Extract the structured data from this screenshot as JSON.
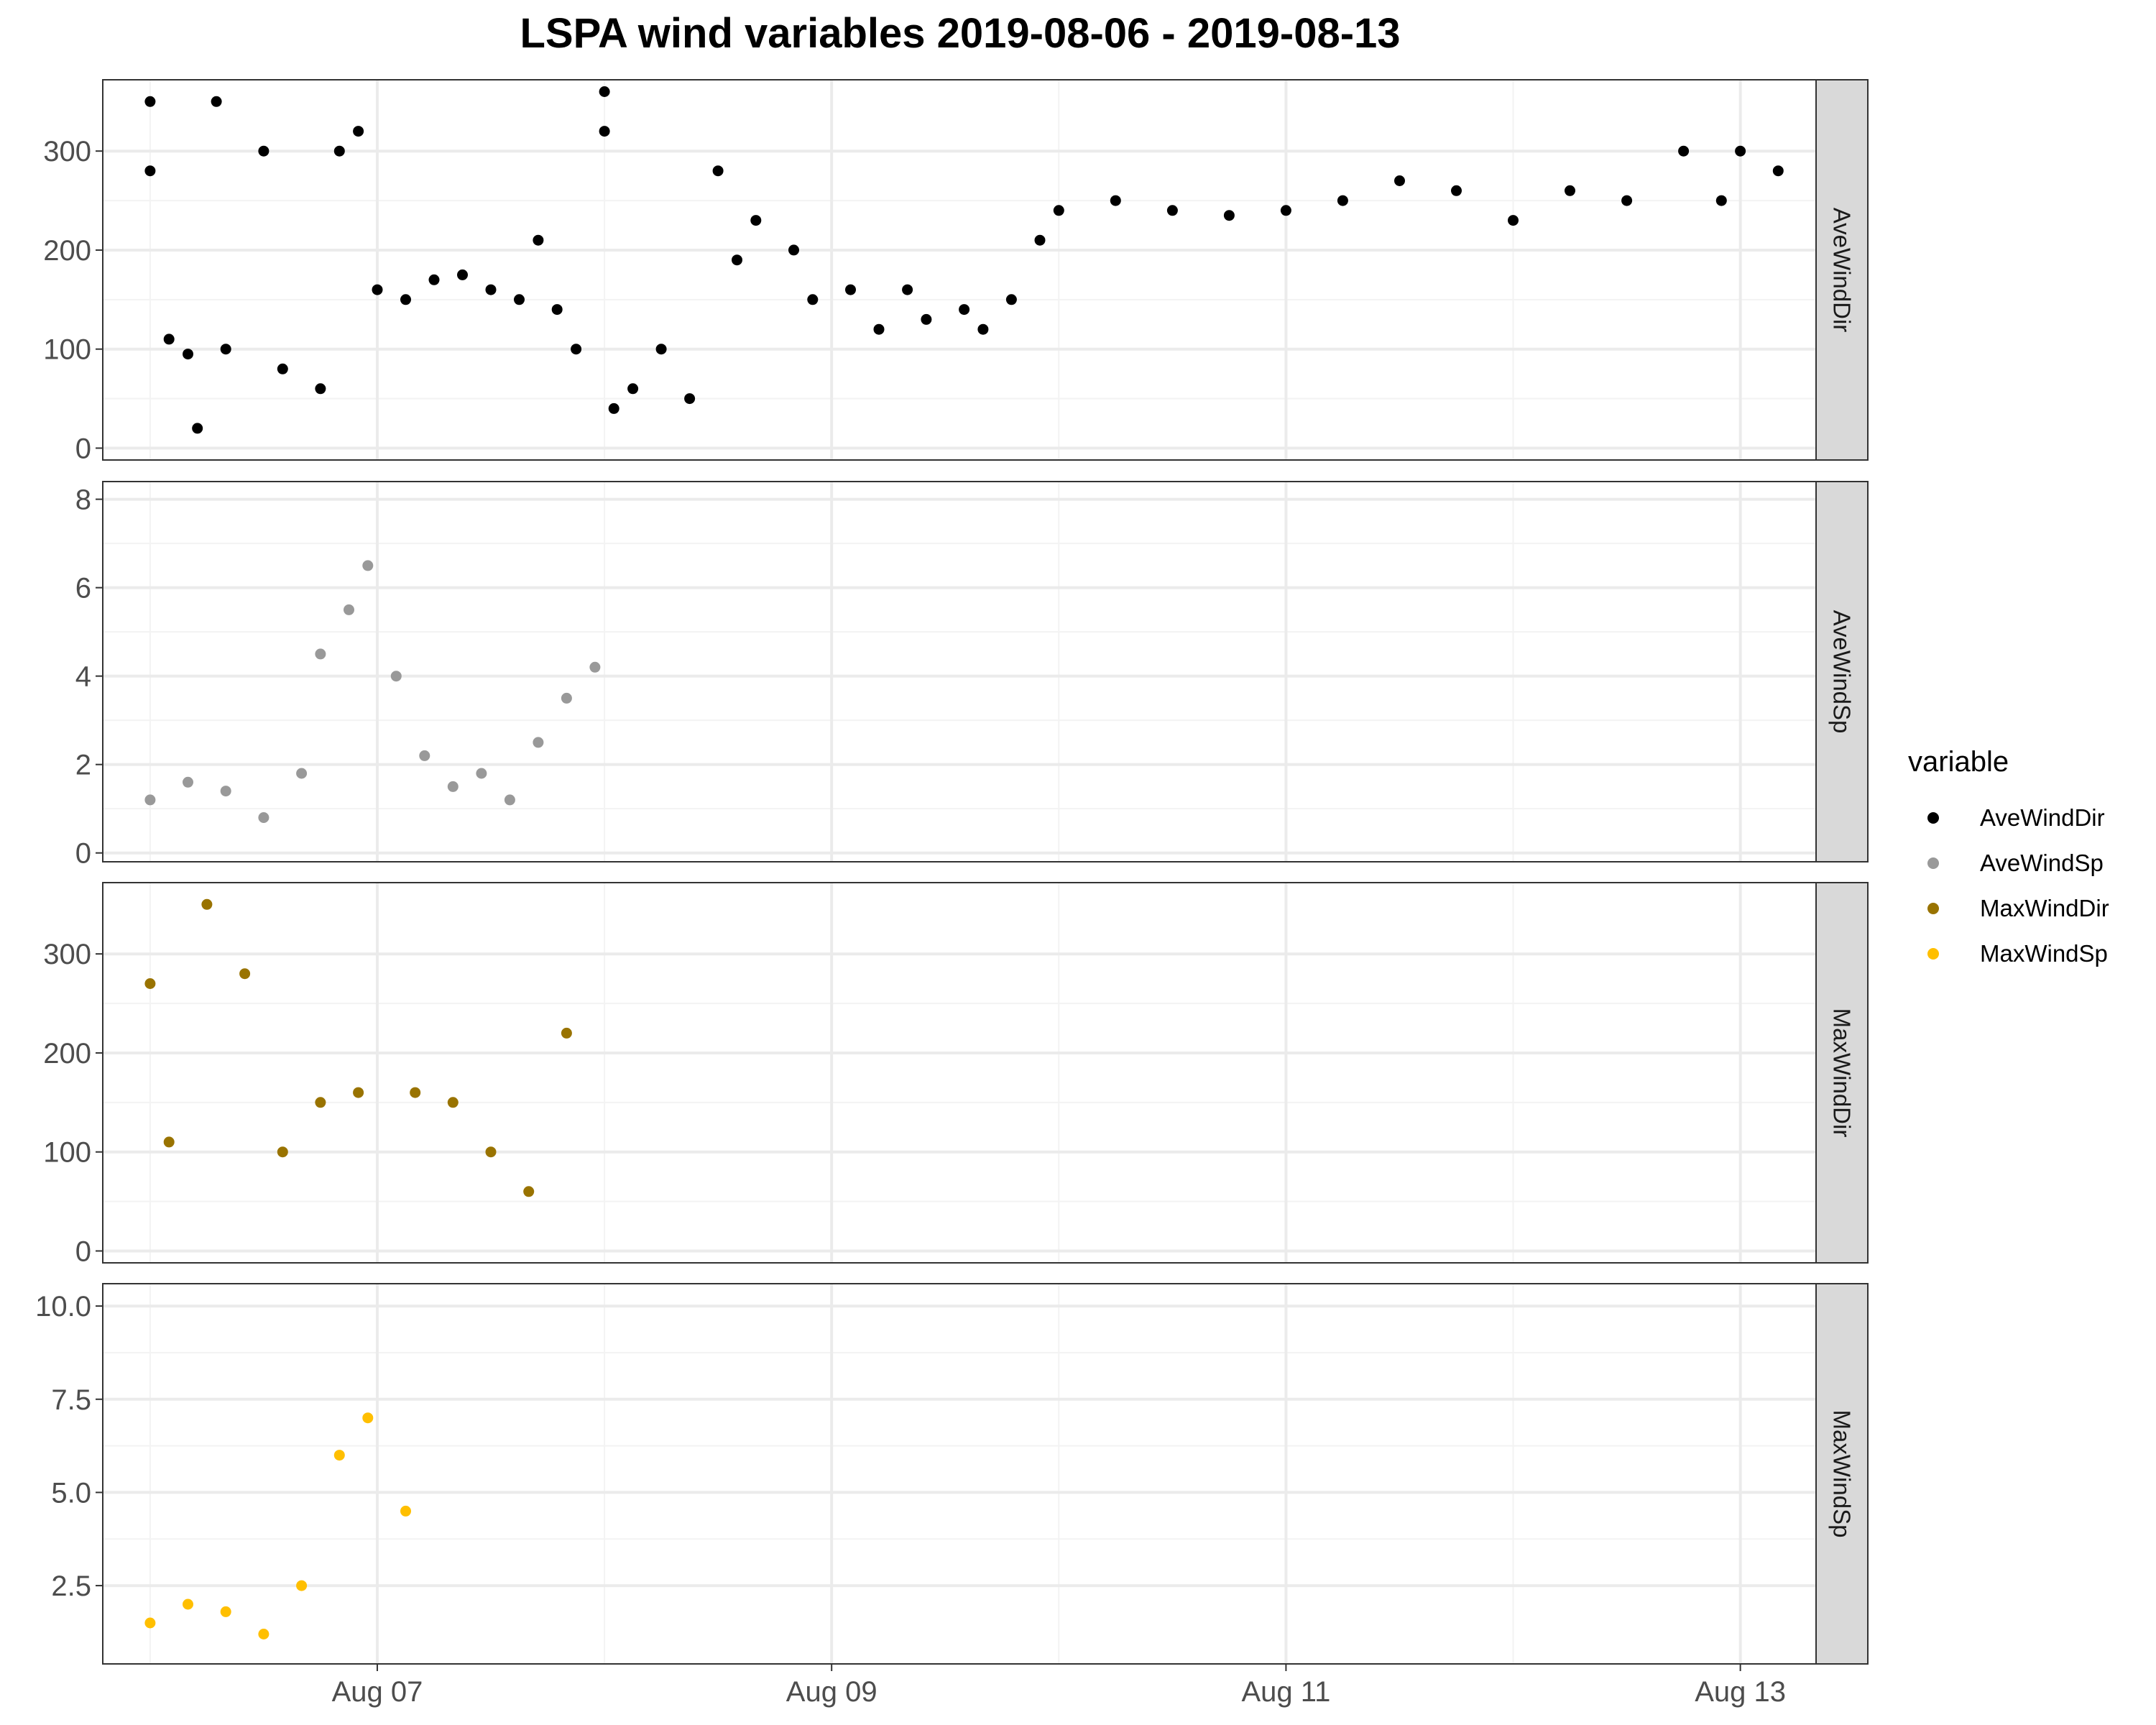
{
  "chart_data": {
    "type": "scatter",
    "title": "LSPA wind variables 2019-08-06 - 2019-08-13",
    "x_axis": {
      "ticks": [
        "Aug 07",
        "Aug 09",
        "Aug 11",
        "Aug 13"
      ],
      "tick_dates": [
        "2019-08-07",
        "2019-08-09",
        "2019-08-11",
        "2019-08-13"
      ],
      "range": [
        "2019-08-05T19:00",
        "2019-08-13T08:00"
      ]
    },
    "legend": {
      "title": "variable",
      "placement": "right",
      "entries": [
        {
          "name": "AveWindDir",
          "color": "#000000"
        },
        {
          "name": "AveWindSp",
          "color": "#999999"
        },
        {
          "name": "MaxWindDir",
          "color": "#997300"
        },
        {
          "name": "MaxWindSp",
          "color": "#ffbf00"
        }
      ]
    },
    "grid": true,
    "panels": [
      {
        "name": "AveWindDir",
        "color": "#000000",
        "ylim": [
          -12,
          372
        ],
        "yticks": [
          0,
          100,
          200,
          300
        ],
        "yticklabels": [
          "0",
          "100",
          "200",
          "300"
        ],
        "points": [
          [
            "2019-08-06T00:00",
            350
          ],
          [
            "2019-08-06T00:00",
            280
          ],
          [
            "2019-08-06T02:00",
            110
          ],
          [
            "2019-08-06T04:00",
            95
          ],
          [
            "2019-08-06T05:00",
            20
          ],
          [
            "2019-08-06T07:00",
            350
          ],
          [
            "2019-08-06T08:00",
            100
          ],
          [
            "2019-08-06T12:00",
            300
          ],
          [
            "2019-08-06T14:00",
            80
          ],
          [
            "2019-08-06T18:00",
            60
          ],
          [
            "2019-08-06T20:00",
            300
          ],
          [
            "2019-08-06T22:00",
            320
          ],
          [
            "2019-08-07T00:00",
            160
          ],
          [
            "2019-08-07T03:00",
            150
          ],
          [
            "2019-08-07T06:00",
            170
          ],
          [
            "2019-08-07T09:00",
            175
          ],
          [
            "2019-08-07T12:00",
            160
          ],
          [
            "2019-08-07T15:00",
            150
          ],
          [
            "2019-08-07T17:00",
            210
          ],
          [
            "2019-08-07T19:00",
            140
          ],
          [
            "2019-08-07T21:00",
            100
          ],
          [
            "2019-08-08T00:00",
            360
          ],
          [
            "2019-08-08T00:00",
            320
          ],
          [
            "2019-08-08T01:00",
            40
          ],
          [
            "2019-08-08T03:00",
            60
          ],
          [
            "2019-08-08T06:00",
            100
          ],
          [
            "2019-08-08T09:00",
            50
          ],
          [
            "2019-08-08T12:00",
            280
          ],
          [
            "2019-08-08T14:00",
            190
          ],
          [
            "2019-08-08T16:00",
            230
          ],
          [
            "2019-08-08T20:00",
            200
          ],
          [
            "2019-08-08T22:00",
            150
          ],
          [
            "2019-08-09T02:00",
            160
          ],
          [
            "2019-08-09T05:00",
            120
          ],
          [
            "2019-08-09T08:00",
            160
          ],
          [
            "2019-08-09T10:00",
            130
          ],
          [
            "2019-08-09T14:00",
            140
          ],
          [
            "2019-08-09T16:00",
            120
          ],
          [
            "2019-08-09T19:00",
            150
          ],
          [
            "2019-08-09T22:00",
            210
          ],
          [
            "2019-08-10T00:00",
            240
          ],
          [
            "2019-08-10T06:00",
            250
          ],
          [
            "2019-08-10T12:00",
            240
          ],
          [
            "2019-08-10T18:00",
            235
          ],
          [
            "2019-08-11T00:00",
            240
          ],
          [
            "2019-08-11T06:00",
            250
          ],
          [
            "2019-08-11T12:00",
            270
          ],
          [
            "2019-08-11T18:00",
            260
          ],
          [
            "2019-08-12T00:00",
            230
          ],
          [
            "2019-08-12T06:00",
            260
          ],
          [
            "2019-08-12T12:00",
            250
          ],
          [
            "2019-08-12T18:00",
            300
          ],
          [
            "2019-08-12T22:00",
            250
          ],
          [
            "2019-08-13T00:00",
            300
          ],
          [
            "2019-08-13T04:00",
            280
          ]
        ]
      },
      {
        "name": "AveWindSp",
        "color": "#999999",
        "ylim": [
          -0.2,
          8.4
        ],
        "yticks": [
          0,
          2,
          4,
          6,
          8
        ],
        "yticklabels": [
          "0",
          "2",
          "4",
          "6",
          "8"
        ],
        "points": [
          [
            "2019-08-06T00:00",
            1.2
          ],
          [
            "2019-08-06T04:00",
            1.6
          ],
          [
            "2019-08-06T08:00",
            1.4
          ],
          [
            "2019-08-06T12:00",
            0.8
          ],
          [
            "2019-08-06T16:00",
            1.8
          ],
          [
            "2019-08-06T18:00",
            4.5
          ],
          [
            "2019-08-06T21:00",
            5.5
          ],
          [
            "2019-08-06T23:00",
            6.5
          ],
          [
            "2019-08-07T02:00",
            4.0
          ],
          [
            "2019-08-07T05:00",
            2.2
          ],
          [
            "2019-08-07T08:00",
            1.5
          ],
          [
            "2019-08-07T11:00",
            1.8
          ],
          [
            "2019-08-07T14:00",
            1.2
          ],
          [
            "2019-08-07T17:00",
            2.5
          ],
          [
            "2019-08-07T20:00",
            3.5
          ],
          [
            "2019-08-07T23:00",
            4.2
          ]
        ]
      },
      {
        "name": "MaxWindDir",
        "color": "#997300",
        "ylim": [
          -12,
          372
        ],
        "yticks": [
          0,
          100,
          200,
          300
        ],
        "yticklabels": [
          "0",
          "100",
          "200",
          "300"
        ],
        "points": [
          [
            "2019-08-06T00:00",
            270
          ],
          [
            "2019-08-06T02:00",
            110
          ],
          [
            "2019-08-06T06:00",
            350
          ],
          [
            "2019-08-06T10:00",
            280
          ],
          [
            "2019-08-06T14:00",
            100
          ],
          [
            "2019-08-06T18:00",
            150
          ],
          [
            "2019-08-06T22:00",
            160
          ],
          [
            "2019-08-07T04:00",
            160
          ],
          [
            "2019-08-07T08:00",
            150
          ],
          [
            "2019-08-07T12:00",
            100
          ],
          [
            "2019-08-07T16:00",
            60
          ],
          [
            "2019-08-07T20:00",
            220
          ]
        ]
      },
      {
        "name": "MaxWindSp",
        "color": "#ffbf00",
        "ylim": [
          0.4,
          10.6
        ],
        "yticks": [
          2.5,
          5.0,
          7.5,
          10.0
        ],
        "yticklabels": [
          "2.5",
          "5.0",
          "7.5",
          "10.0"
        ],
        "points": [
          [
            "2019-08-06T00:00",
            1.5
          ],
          [
            "2019-08-06T04:00",
            2.0
          ],
          [
            "2019-08-06T08:00",
            1.8
          ],
          [
            "2019-08-06T12:00",
            1.2
          ],
          [
            "2019-08-06T16:00",
            2.5
          ],
          [
            "2019-08-06T20:00",
            6.0
          ],
          [
            "2019-08-06T23:00",
            7.0
          ],
          [
            "2019-08-07T03:00",
            4.5
          ]
        ]
      }
    ]
  }
}
